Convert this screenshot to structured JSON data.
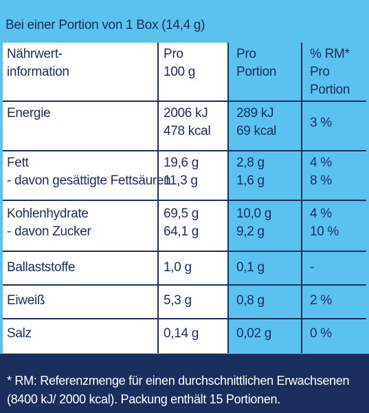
{
  "header": {
    "serving_text": "Bei einer Portion von 1 Box (14,4 g)"
  },
  "columns": {
    "nutrient": [
      "Nährwert-",
      "information"
    ],
    "per100": [
      "Pro",
      "100 g"
    ],
    "perPortion": [
      "Pro",
      "Portion"
    ],
    "rm": [
      "% RM*",
      "Pro",
      "Portion"
    ]
  },
  "rows": [
    {
      "name": [
        "Energie"
      ],
      "per100": [
        "2006 kJ",
        "478 kcal"
      ],
      "portion": [
        "289 kJ",
        "69 kcal"
      ],
      "rm": [
        "3 %"
      ]
    },
    {
      "name": [
        "Fett",
        "- davon gesättigte Fettsäuren"
      ],
      "per100": [
        "19,6 g",
        "11,3 g"
      ],
      "portion": [
        "2,8 g",
        "1,6 g"
      ],
      "rm": [
        "4 %",
        "8 %"
      ]
    },
    {
      "name": [
        "Kohlenhydrate",
        "- davon Zucker"
      ],
      "per100": [
        "69,5 g",
        "64,1 g"
      ],
      "portion": [
        "10,0 g",
        "9,2 g"
      ],
      "rm": [
        "4 %",
        "10 %"
      ]
    },
    {
      "name": [
        "Ballaststoffe"
      ],
      "per100": [
        "1,0 g"
      ],
      "portion": [
        "0,1 g"
      ],
      "rm": [
        "-"
      ]
    },
    {
      "name": [
        "Eiweiß"
      ],
      "per100": [
        "5,3 g"
      ],
      "portion": [
        "0,8 g"
      ],
      "rm": [
        "2 %"
      ]
    },
    {
      "name": [
        "Salz"
      ],
      "per100": [
        "0,14 g"
      ],
      "portion": [
        "0,02 g"
      ],
      "rm": [
        "0 %"
      ]
    }
  ],
  "footer": {
    "line1": "* RM: Referenzmenge für einen durchschnittlichen Erwachsenen",
    "line2": "(8400 kJ/ 2000 kcal). Packung enthält 15 Portionen."
  },
  "colors": {
    "navy": "#1a2f5e",
    "light_blue": "#5bc2f0",
    "white": "#ffffff"
  }
}
